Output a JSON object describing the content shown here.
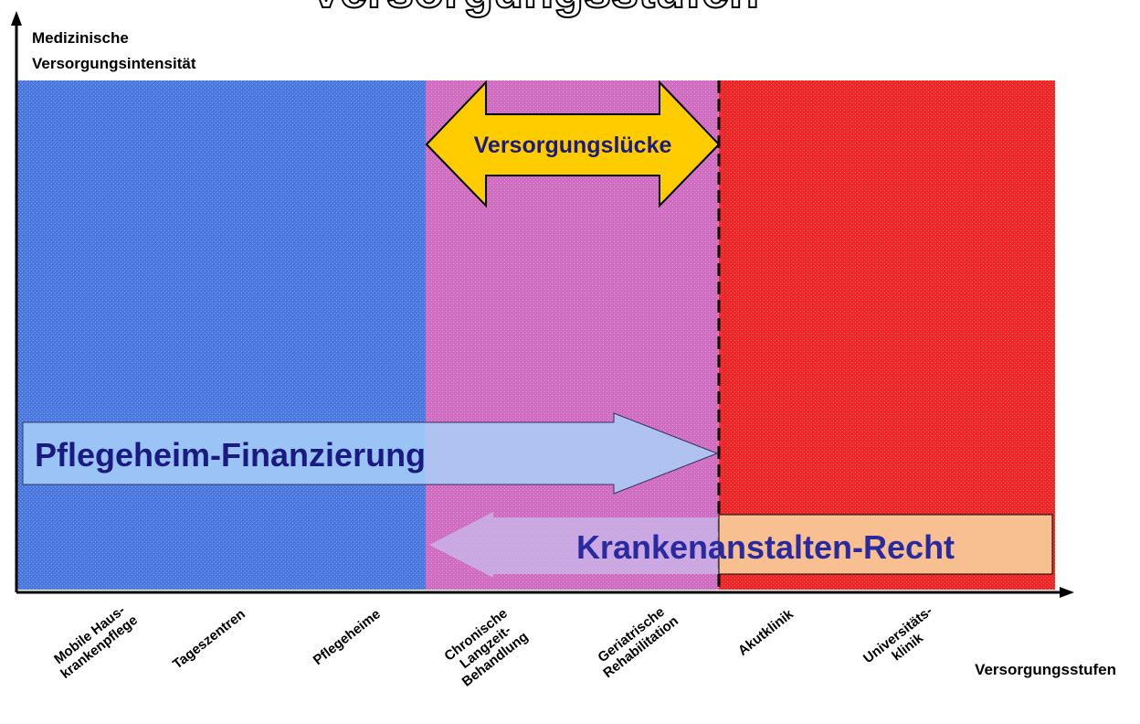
{
  "title": "Versorgungsstufen",
  "y_axis_label": [
    "Medizinische",
    "Versorgungsintensität"
  ],
  "x_axis_label": "Versorgungsstufen",
  "gap_label": "Versorgungslücke",
  "financing_label": "Pflegeheim-Finanzierung",
  "law_label": "Krankenanstalten-Recht",
  "categories": [
    [
      "Mobile Haus-",
      "krankenpflege"
    ],
    [
      "Tageszentren"
    ],
    [
      "Pflegeheime"
    ],
    [
      "Chronische",
      "Langzeit-",
      "Behandlung"
    ],
    [
      "Geriatrische",
      "Rehabilitation"
    ],
    [
      "Akutklinik"
    ],
    [
      "Universitäts-",
      "klinik"
    ]
  ]
}
